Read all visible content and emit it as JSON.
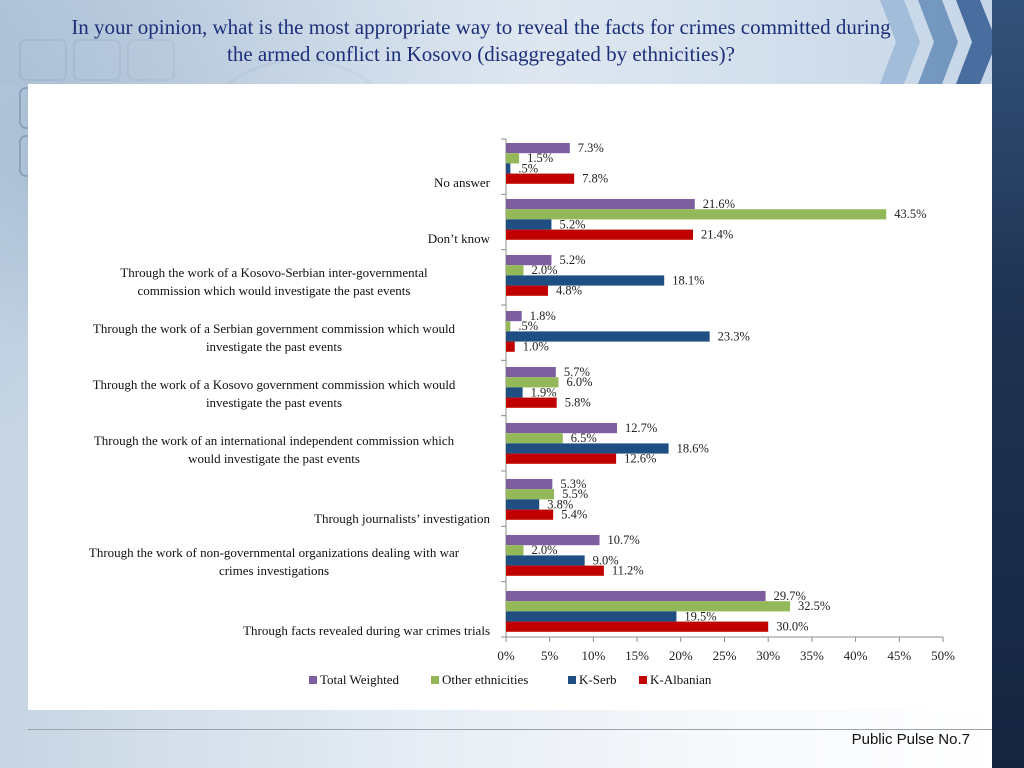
{
  "page": {
    "title": "In your opinion, what is the most appropriate way to reveal the facts for crimes committed during the armed conflict in Kosovo (disaggregated by ethnicities)?",
    "footer": "Public Pulse No.7"
  },
  "chart_data": {
    "type": "bar",
    "orientation": "horizontal",
    "categories": [
      "No answer",
      "Don’t know",
      "Through the work of a Kosovo-Serbian inter-governmental commission which would investigate the past events",
      "Through the work of a Serbian government commission which would investigate the past events",
      "Through the work of a Kosovo government commission which would investigate the past events",
      "Through the work of an international independent commission which would investigate the past events",
      "Through journalists’ investigation",
      "Through the work of non-governmental organizations dealing with war crimes investigations",
      "Through facts revealed during war crimes trials"
    ],
    "category_lines": [
      [
        "No answer"
      ],
      [
        "Don’t know"
      ],
      [
        "Through the work of a Kosovo-Serbian inter-governmental",
        "commission which would investigate the past events"
      ],
      [
        "Through the work of a Serbian government commission which would",
        "investigate the past events"
      ],
      [
        "Through the work of a Kosovo government commission which would",
        "investigate the past events"
      ],
      [
        "Through the work of an international independent commission which",
        "would investigate the past events"
      ],
      [
        "Through journalists’ investigation"
      ],
      [
        "Through the work of non-governmental organizations dealing with war",
        "crimes investigations"
      ],
      [
        "Through facts revealed during war crimes trials"
      ]
    ],
    "series": [
      {
        "name": "Total Weighted",
        "color": "#7d5fa0",
        "values": [
          7.3,
          21.6,
          5.2,
          1.8,
          5.7,
          12.7,
          5.3,
          10.7,
          29.7
        ],
        "labels": [
          "7.3%",
          "21.6%",
          "5.2%",
          "1.8%",
          "5.7%",
          "12.7%",
          "5.3%",
          "10.7%",
          "29.7%"
        ]
      },
      {
        "name": "Other ethnicities",
        "color": "#93b85a",
        "values": [
          1.5,
          43.5,
          2.0,
          0.5,
          6.0,
          6.5,
          5.5,
          2.0,
          32.5
        ],
        "labels": [
          "1.5%",
          "43.5%",
          "2.0%",
          ".5%",
          "6.0%",
          "6.5%",
          "5.5%",
          "2.0%",
          "32.5%"
        ]
      },
      {
        "name": "K-Serb",
        "color": "#1f4e82",
        "values": [
          0.5,
          5.2,
          18.1,
          23.3,
          1.9,
          18.6,
          3.8,
          9.0,
          19.5
        ],
        "labels": [
          ".5%",
          "5.2%",
          "18.1%",
          "23.3%",
          "1.9%",
          "18.6%",
          "3.8%",
          "9.0%",
          "19.5%"
        ]
      },
      {
        "name": "K-Albanian",
        "color": "#c00000",
        "values": [
          7.8,
          21.4,
          4.8,
          1.0,
          5.8,
          12.6,
          5.4,
          11.2,
          30.0
        ],
        "labels": [
          "7.8%",
          "21.4%",
          "4.8%",
          "1.0%",
          "5.8%",
          "12.6%",
          "5.4%",
          "11.2%",
          "30.0%"
        ]
      }
    ],
    "xlim": [
      0,
      50
    ],
    "xticks": [
      0,
      5,
      10,
      15,
      20,
      25,
      30,
      35,
      40,
      45,
      50
    ],
    "xtick_labels": [
      "0%",
      "5%",
      "10%",
      "15%",
      "20%",
      "25%",
      "30%",
      "35%",
      "40%",
      "45%",
      "50%"
    ],
    "grid": false,
    "legend_position": "bottom"
  }
}
